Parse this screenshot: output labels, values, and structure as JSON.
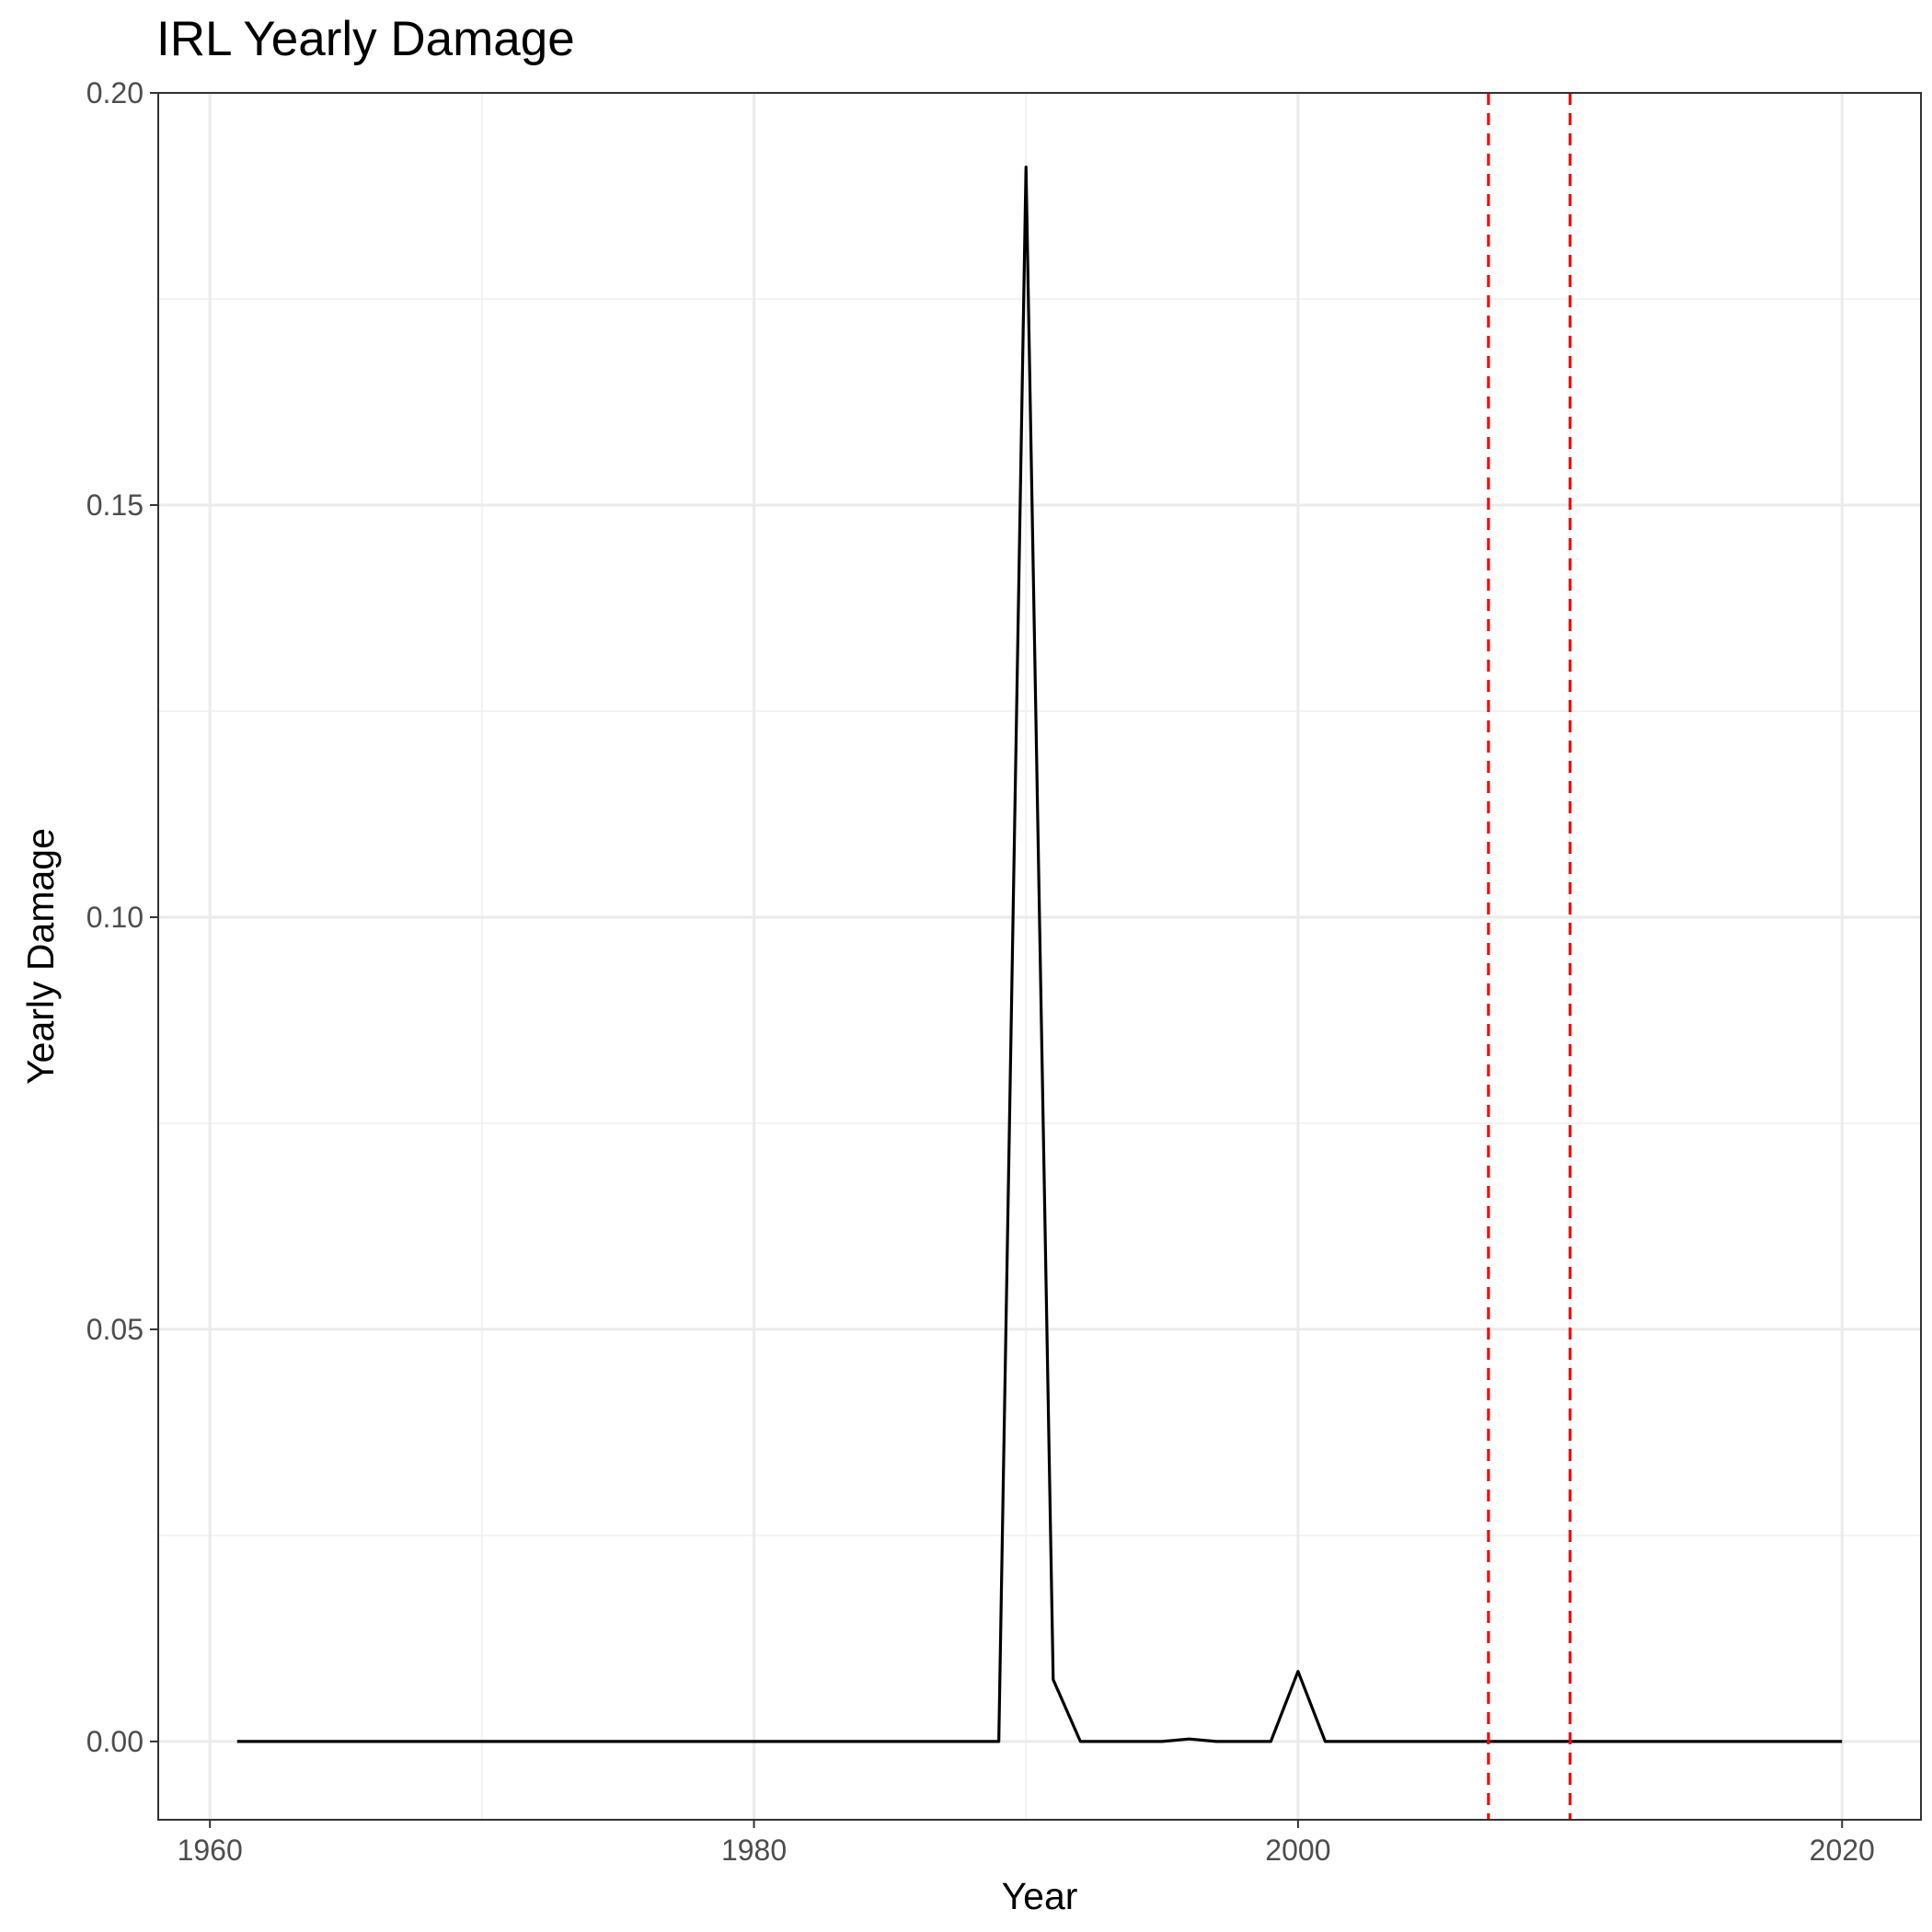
{
  "chart_data": {
    "type": "line",
    "title": "IRL Yearly Damage",
    "xlabel": "Year",
    "ylabel": "Yearly Damage",
    "xlim": [
      1958.1,
      2022.9
    ],
    "ylim": [
      -0.0095,
      0.2
    ],
    "x_ticks": [
      1960,
      1980,
      2000,
      2020
    ],
    "x_tick_labels": [
      "1960",
      "1980",
      "2000",
      "2020"
    ],
    "x_minor_ticks": [
      1970,
      1990,
      2010
    ],
    "y_ticks": [
      0,
      0.05,
      0.1,
      0.15,
      0.2
    ],
    "y_tick_labels": [
      "0.00",
      "0.05",
      "0.10",
      "0.15",
      "0.20"
    ],
    "y_minor_ticks": [
      0.025,
      0.075,
      0.125,
      0.175
    ],
    "grid": true,
    "legend": "none",
    "series": [
      {
        "color": "#000000",
        "x": [
          1961,
          1962,
          1963,
          1964,
          1965,
          1966,
          1967,
          1968,
          1969,
          1970,
          1971,
          1972,
          1973,
          1974,
          1975,
          1976,
          1977,
          1978,
          1979,
          1980,
          1981,
          1982,
          1983,
          1984,
          1985,
          1986,
          1987,
          1988,
          1989,
          1990,
          1991,
          1992,
          1993,
          1994,
          1995,
          1996,
          1997,
          1998,
          1999,
          2000,
          2001,
          2002,
          2003,
          2004,
          2005,
          2006,
          2007,
          2008,
          2009,
          2010,
          2011,
          2012,
          2013,
          2014,
          2015,
          2016,
          2017,
          2018,
          2019,
          2020
        ],
        "y": [
          0,
          0,
          0,
          0,
          0,
          0,
          0,
          0,
          0,
          0,
          0,
          0,
          0,
          0,
          0,
          0,
          0,
          0,
          0,
          0,
          0,
          0,
          0,
          0,
          0,
          0,
          0,
          0,
          0,
          0.191,
          0.0075,
          0,
          0,
          0,
          0,
          0.0003,
          0,
          0,
          0,
          0.0085,
          0,
          0,
          0,
          0,
          0,
          0,
          0,
          0,
          0,
          0,
          0,
          0,
          0,
          0,
          0,
          0,
          0,
          0,
          0,
          0
        ]
      }
    ],
    "vlines": [
      {
        "x": 2007,
        "color": "#ff0000",
        "style": "dashed"
      },
      {
        "x": 2010,
        "color": "#ff0000",
        "style": "dashed"
      }
    ],
    "colors": {
      "panel_background": "#ffffff",
      "major_grid": "#ebebeb",
      "minor_grid": "#f2f2f2",
      "panel_border": "#333333",
      "tick_text": "#4d4d4d",
      "tick_mark": "#333333"
    }
  }
}
